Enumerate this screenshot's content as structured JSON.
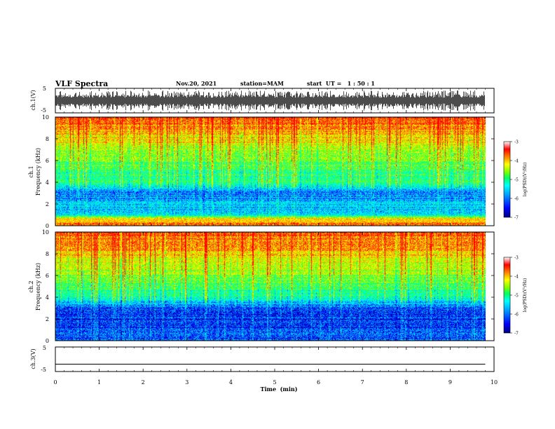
{
  "header": {
    "title": "VLF Spectra",
    "date": "Nov.20, 2021",
    "station": "station=MAM",
    "start": "start  UT =   1 : 50 : 1"
  },
  "colors": {
    "colormap": [
      "#000080",
      "#0000ff",
      "#00a0ff",
      "#00ffff",
      "#00ff80",
      "#80ff00",
      "#ffff00",
      "#ff8000",
      "#ff0000",
      "#ffffff"
    ],
    "frame": "#000000"
  },
  "chart_data": [
    {
      "type": "line",
      "panel": "ch1-waveform",
      "ylabel": "ch.1(V)",
      "ylim": [
        -5,
        5
      ],
      "yticks": [
        "5",
        "-5"
      ],
      "x": [
        0,
        9.8
      ],
      "description_values": "dense VLF waveform bursts between about -3 and 3 V"
    },
    {
      "type": "heatmap",
      "panel": "ch1-spectrogram",
      "ylabel": "ch.1\nFrequency (kHz)",
      "ylabel_line1": "ch.1",
      "ylabel_line2": "Frequency (kHz)",
      "ylim": [
        0,
        10
      ],
      "yticks": [
        "0",
        "2",
        "4",
        "6",
        "8",
        "10"
      ],
      "xlim": [
        0,
        10
      ],
      "data_xmax": 9.8,
      "colorbar": {
        "label": "log(PSD)(V²/Hz)",
        "ticks": [
          "-3",
          "-4",
          "-5",
          "-6",
          "-7"
        ],
        "range": [
          -7,
          -3
        ]
      },
      "psd_profile_khz": [
        {
          "f": 0.5,
          "logpsd": -3.5
        },
        {
          "f": 1,
          "logpsd": -5.6
        },
        {
          "f": 2,
          "logpsd": -5.8
        },
        {
          "f": 3,
          "logpsd": -6.0
        },
        {
          "f": 4,
          "logpsd": -5.0
        },
        {
          "f": 5,
          "logpsd": -4.9
        },
        {
          "f": 6,
          "logpsd": -4.6
        },
        {
          "f": 7,
          "logpsd": -4.3
        },
        {
          "f": 8,
          "logpsd": -3.9
        },
        {
          "f": 9,
          "logpsd": -3.6
        },
        {
          "f": 10,
          "logpsd": -3.4
        }
      ]
    },
    {
      "type": "heatmap",
      "panel": "ch2-spectrogram",
      "ylabel_line1": "ch.2",
      "ylabel_line2": "Frequency (kHz)",
      "ylim": [
        0,
        10
      ],
      "yticks": [
        "0",
        "2",
        "4",
        "6",
        "8",
        "10"
      ],
      "xlim": [
        0,
        10
      ],
      "data_xmax": 9.8,
      "colorbar": {
        "label": "log(PSD)(V²/Hz)",
        "ticks": [
          "-3",
          "-4",
          "-5",
          "-6",
          "-7"
        ],
        "range": [
          -7,
          -3
        ]
      },
      "psd_profile_khz": [
        {
          "f": 0.5,
          "logpsd": -6.2
        },
        {
          "f": 1,
          "logpsd": -6.3
        },
        {
          "f": 2,
          "logpsd": -6.4
        },
        {
          "f": 3,
          "logpsd": -6.2
        },
        {
          "f": 4,
          "logpsd": -5.2
        },
        {
          "f": 5,
          "logpsd": -4.9
        },
        {
          "f": 6,
          "logpsd": -4.5
        },
        {
          "f": 7,
          "logpsd": -4.2
        },
        {
          "f": 8,
          "logpsd": -3.8
        },
        {
          "f": 9,
          "logpsd": -3.5
        },
        {
          "f": 10,
          "logpsd": -3.3
        }
      ]
    },
    {
      "type": "line",
      "panel": "ch3-waveform",
      "ylabel": "ch.3(V)",
      "ylim": [
        -5,
        5
      ],
      "yticks": [
        "5",
        "-5"
      ],
      "x": [
        0,
        9.8
      ],
      "y": [
        -2,
        -2
      ]
    }
  ],
  "xaxis": {
    "label": "Time  (min)",
    "ticks": [
      "0",
      "1",
      "2",
      "3",
      "4",
      "5",
      "6",
      "7",
      "8",
      "9",
      "10"
    ],
    "range": [
      0,
      10
    ]
  }
}
